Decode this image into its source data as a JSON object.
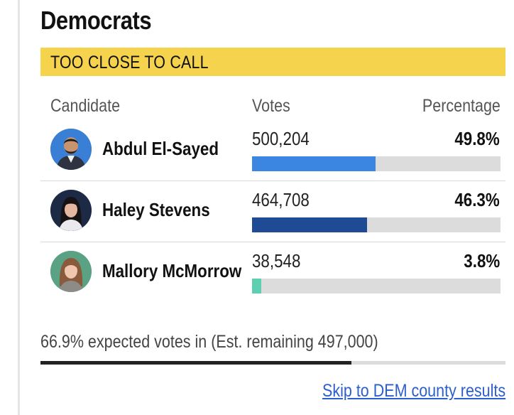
{
  "party": {
    "title": "Democrats"
  },
  "status": {
    "label": "TOO CLOSE TO CALL",
    "color": "#f6d34d"
  },
  "table": {
    "headers": {
      "candidate": "Candidate",
      "votes": "Votes",
      "percentage": "Percentage"
    },
    "rows": [
      {
        "name": "Abdul El-Sayed",
        "votes": "500,204",
        "percent_label": "49.8%",
        "percent": 49.8,
        "bar_color": "#3b86e0",
        "avatar_icon": "candidate-photo"
      },
      {
        "name": "Haley Stevens",
        "votes": "464,708",
        "percent_label": "46.3%",
        "percent": 46.3,
        "bar_color": "#1f4a94",
        "avatar_icon": "candidate-photo"
      },
      {
        "name": "Mallory McMorrow",
        "votes": "38,548",
        "percent_label": "3.8%",
        "percent": 3.8,
        "bar_color": "#5cd0b0",
        "avatar_icon": "candidate-photo"
      }
    ]
  },
  "expected": {
    "text": "66.9% expected votes in (Est. remaining 497,000)",
    "percent": 66.9
  },
  "link": {
    "label": "Skip to DEM county results"
  }
}
